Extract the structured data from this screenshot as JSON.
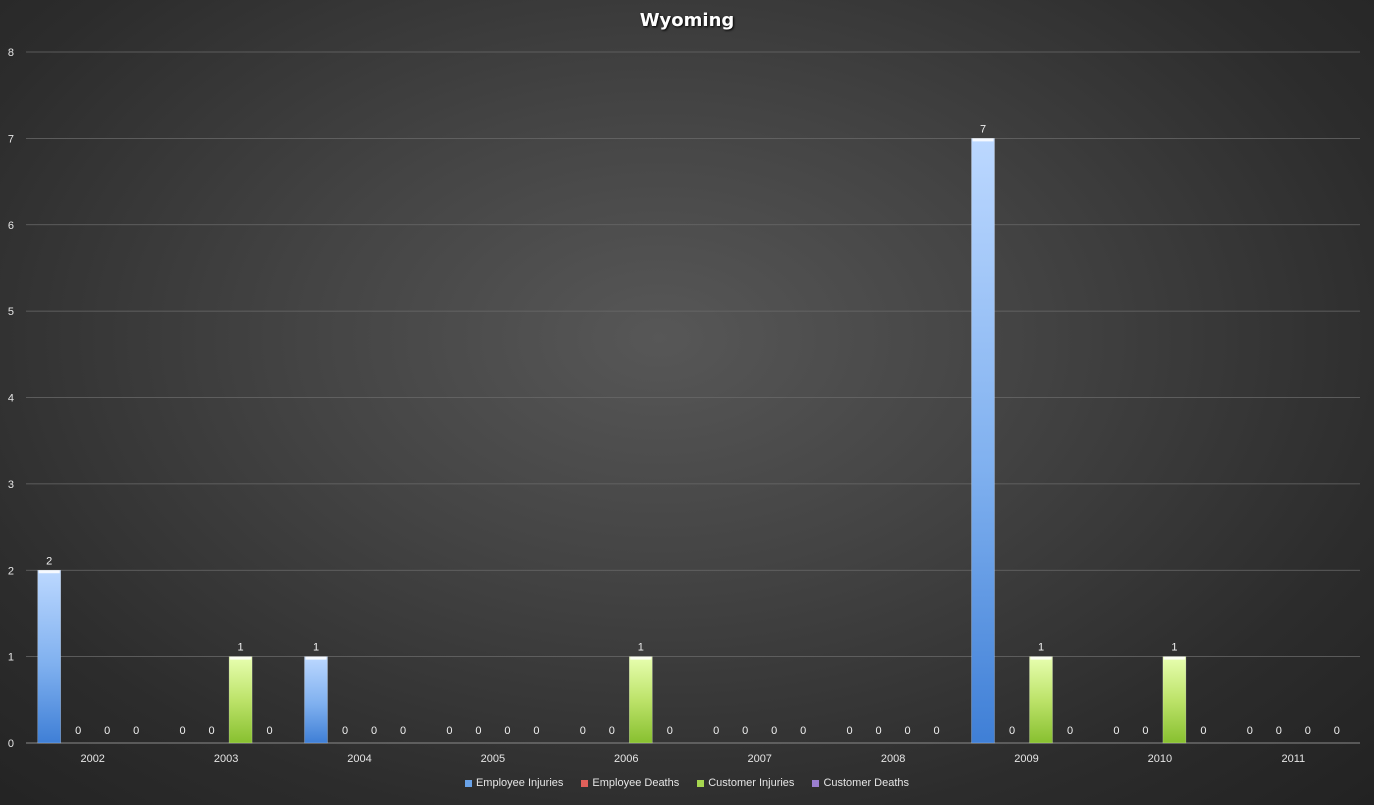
{
  "chart_data": {
    "type": "bar",
    "title": "Wyoming",
    "xlabel": "",
    "ylabel": "",
    "ylim": [
      0,
      8
    ],
    "yticks": [
      "0",
      "1",
      "2",
      "3",
      "4",
      "5",
      "6",
      "7",
      "8"
    ],
    "grid": true,
    "legend_position": "bottom",
    "categories": [
      "2002",
      "2003",
      "2004",
      "2005",
      "2006",
      "2007",
      "2008",
      "2009",
      "2010",
      "2011"
    ],
    "series": [
      {
        "name": "Employee Injuries",
        "color": "#6aa3e8",
        "values": [
          2,
          0,
          1,
          0,
          0,
          0,
          0,
          7,
          0,
          0
        ]
      },
      {
        "name": "Employee Deaths",
        "color": "#e0605a",
        "values": [
          0,
          0,
          0,
          0,
          0,
          0,
          0,
          0,
          0,
          0
        ]
      },
      {
        "name": "Customer Injuries",
        "color": "#a6d64f",
        "values": [
          0,
          1,
          0,
          0,
          1,
          0,
          0,
          1,
          1,
          0
        ]
      },
      {
        "name": "Customer Deaths",
        "color": "#9b7fd0",
        "values": [
          0,
          0,
          0,
          0,
          0,
          0,
          0,
          0,
          0,
          0
        ]
      }
    ]
  }
}
